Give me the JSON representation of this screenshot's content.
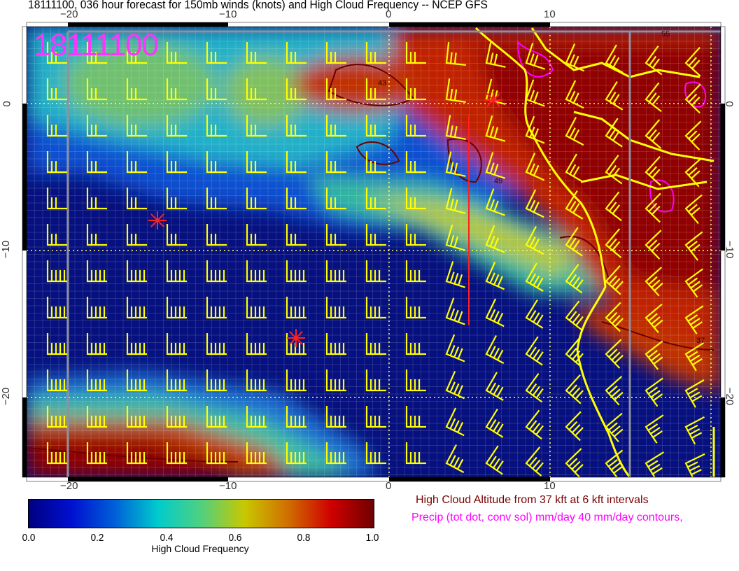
{
  "title": "18111100, 036 hour forecast for 150mb winds (knots) and High Cloud Frequency -- NCEP GFS",
  "stamp": "18111100",
  "lon_ticks": [
    "−20",
    "−10",
    "0",
    "10"
  ],
  "lat_ticks": [
    "0",
    "−10",
    "−20"
  ],
  "colorbar": {
    "label": "High Cloud Frequency",
    "ticks": [
      "0.0",
      "0.2",
      "0.4",
      "0.6",
      "0.8",
      "1.0"
    ],
    "colors": [
      "#000080",
      "#0010d0",
      "#0060d8",
      "#00cccc",
      "#50d080",
      "#c8c800",
      "#d07000",
      "#d00000",
      "#700000"
    ]
  },
  "legend": {
    "altitude": "High Cloud Altitude from 37 kft at 6 kft intervals",
    "precip": "Precip (tot dot, conv sol) mm/day 40 mm/day contours,"
  },
  "contour_labels": [
    "43",
    "49",
    "37",
    "55"
  ],
  "colors": {
    "barbs": "#ffff00",
    "coast": "#ffff00",
    "markers": "#ff2020",
    "contours": "#6b0000",
    "precip": "#ff00ff"
  }
}
